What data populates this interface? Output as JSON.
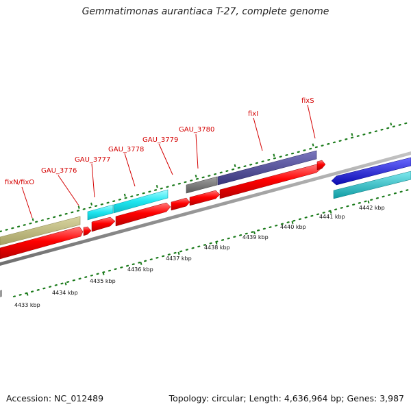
{
  "title": "Gemmatimonas aurantiaca T-27, complete genome",
  "accession": "Accession: NC_012489",
  "stats": "Topology: circular; Length: 4,636,964 bp; Genes: 3,987",
  "map": {
    "colors": {
      "backbone": "#8c8c8c",
      "cds": "#ff0000",
      "tick": "#1a7a1a",
      "label": "#d40000",
      "tan": "#b9b57a",
      "cyan": "#14e0ec",
      "navy": "#48458e",
      "gray": "#707070",
      "blue": "#1010dd",
      "teal": "#13c2c8"
    },
    "gene_labels": [
      {
        "id": "fixN-fixO",
        "text": "fixN/fixO"
      },
      {
        "id": "gau-3776",
        "text": "GAU_3776"
      },
      {
        "id": "gau-3777",
        "text": "GAU_3777"
      },
      {
        "id": "gau-3778",
        "text": "GAU_3778"
      },
      {
        "id": "gau-3779",
        "text": "GAU_3779"
      },
      {
        "id": "gau-3780",
        "text": "GAU_3780"
      },
      {
        "id": "fixI",
        "text": "fixI"
      },
      {
        "id": "fixS",
        "text": "fixS"
      }
    ],
    "kbp_labels": [
      "4433 kbp",
      "4434 kbp",
      "4435 kbp",
      "4436 kbp",
      "4437 kbp",
      "4438 kbp",
      "4439 kbp",
      "4440 kbp",
      "4441 kbp",
      "4442 kbp"
    ]
  }
}
